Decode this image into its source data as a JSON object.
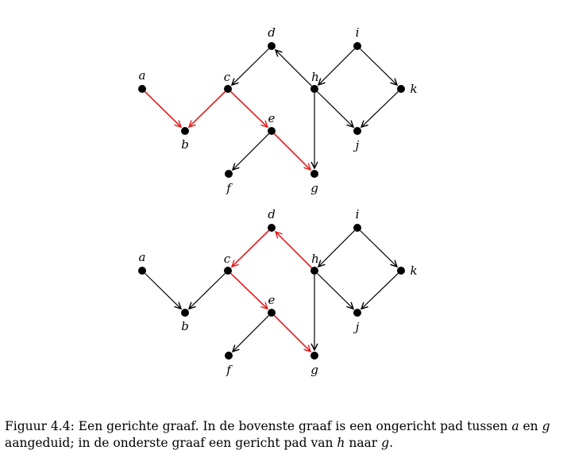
{
  "graphs": [
    {
      "id": "top",
      "nodes": [
        "a",
        "b",
        "c",
        "d",
        "e",
        "f",
        "g",
        "h",
        "i",
        "j",
        "k"
      ],
      "edges": [
        {
          "from": "a",
          "to": "b",
          "color": "#e41a1c"
        },
        {
          "from": "c",
          "to": "b",
          "color": "#e41a1c"
        },
        {
          "from": "c",
          "to": "e",
          "color": "#e41a1c"
        },
        {
          "from": "e",
          "to": "g",
          "color": "#e41a1c"
        },
        {
          "from": "e",
          "to": "f",
          "color": "#000000"
        },
        {
          "from": "d",
          "to": "c",
          "color": "#000000"
        },
        {
          "from": "h",
          "to": "d",
          "color": "#000000"
        },
        {
          "from": "h",
          "to": "g",
          "color": "#000000"
        },
        {
          "from": "h",
          "to": "j",
          "color": "#000000"
        },
        {
          "from": "i",
          "to": "h",
          "color": "#000000"
        },
        {
          "from": "i",
          "to": "k",
          "color": "#000000"
        },
        {
          "from": "k",
          "to": "j",
          "color": "#000000"
        }
      ]
    },
    {
      "id": "bottom",
      "nodes": [
        "a",
        "b",
        "c",
        "d",
        "e",
        "f",
        "g",
        "h",
        "i",
        "j",
        "k"
      ],
      "edges": [
        {
          "from": "a",
          "to": "b",
          "color": "#000000"
        },
        {
          "from": "c",
          "to": "b",
          "color": "#000000"
        },
        {
          "from": "c",
          "to": "e",
          "color": "#e41a1c"
        },
        {
          "from": "e",
          "to": "g",
          "color": "#e41a1c"
        },
        {
          "from": "e",
          "to": "f",
          "color": "#000000"
        },
        {
          "from": "d",
          "to": "c",
          "color": "#e41a1c"
        },
        {
          "from": "h",
          "to": "d",
          "color": "#e41a1c"
        },
        {
          "from": "h",
          "to": "g",
          "color": "#000000"
        },
        {
          "from": "h",
          "to": "j",
          "color": "#000000"
        },
        {
          "from": "i",
          "to": "h",
          "color": "#000000"
        },
        {
          "from": "i",
          "to": "k",
          "color": "#000000"
        },
        {
          "from": "k",
          "to": "j",
          "color": "#000000"
        }
      ]
    }
  ],
  "caption": {
    "prefix": "Figuur 4.4: Een gerichte graaf. In de bovenste graaf is een ongericht pad tussen ",
    "var1": "a",
    "mid1": " en ",
    "var2": "g",
    "mid2": " aangeduid; in de onderste graaf een gericht pad van ",
    "var3": "h",
    "mid3": " naar ",
    "var4": "g",
    "suffix": "."
  }
}
